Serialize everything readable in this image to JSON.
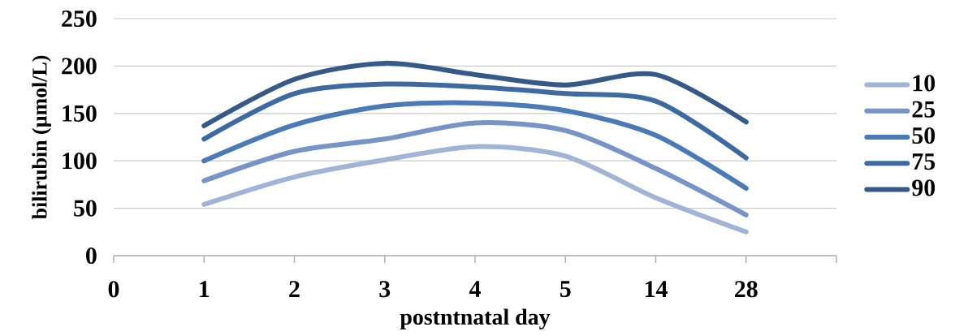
{
  "chart_data": {
    "type": "line",
    "xlabel": "postntnatal day",
    "ylabel": "bilirubin (µmol/L)",
    "categories": [
      "0",
      "1",
      "2",
      "3",
      "4",
      "5",
      "14",
      "28",
      null
    ],
    "series": [
      {
        "name": "10",
        "color": "#a1b3d6",
        "values": [
          null,
          54,
          83,
          101,
          115,
          105,
          61,
          25,
          null
        ]
      },
      {
        "name": "25",
        "color": "#7694c8",
        "values": [
          null,
          79,
          110,
          123,
          140,
          132,
          92,
          43,
          null
        ]
      },
      {
        "name": "50",
        "color": "#4a7ab8",
        "values": [
          null,
          100,
          138,
          158,
          161,
          153,
          127,
          71,
          null
        ]
      },
      {
        "name": "75",
        "color": "#3e6aa3",
        "values": [
          null,
          123,
          171,
          181,
          178,
          171,
          163,
          103,
          null
        ]
      },
      {
        "name": "90",
        "color": "#355a8a",
        "values": [
          null,
          137,
          186,
          203,
          191,
          180,
          191,
          141,
          null
        ]
      }
    ],
    "ylim": [
      0,
      250
    ],
    "yticks": [
      0,
      50,
      100,
      150,
      200,
      250
    ],
    "grid": "y",
    "legend": "right",
    "marker": "none",
    "line_style": "solid"
  }
}
